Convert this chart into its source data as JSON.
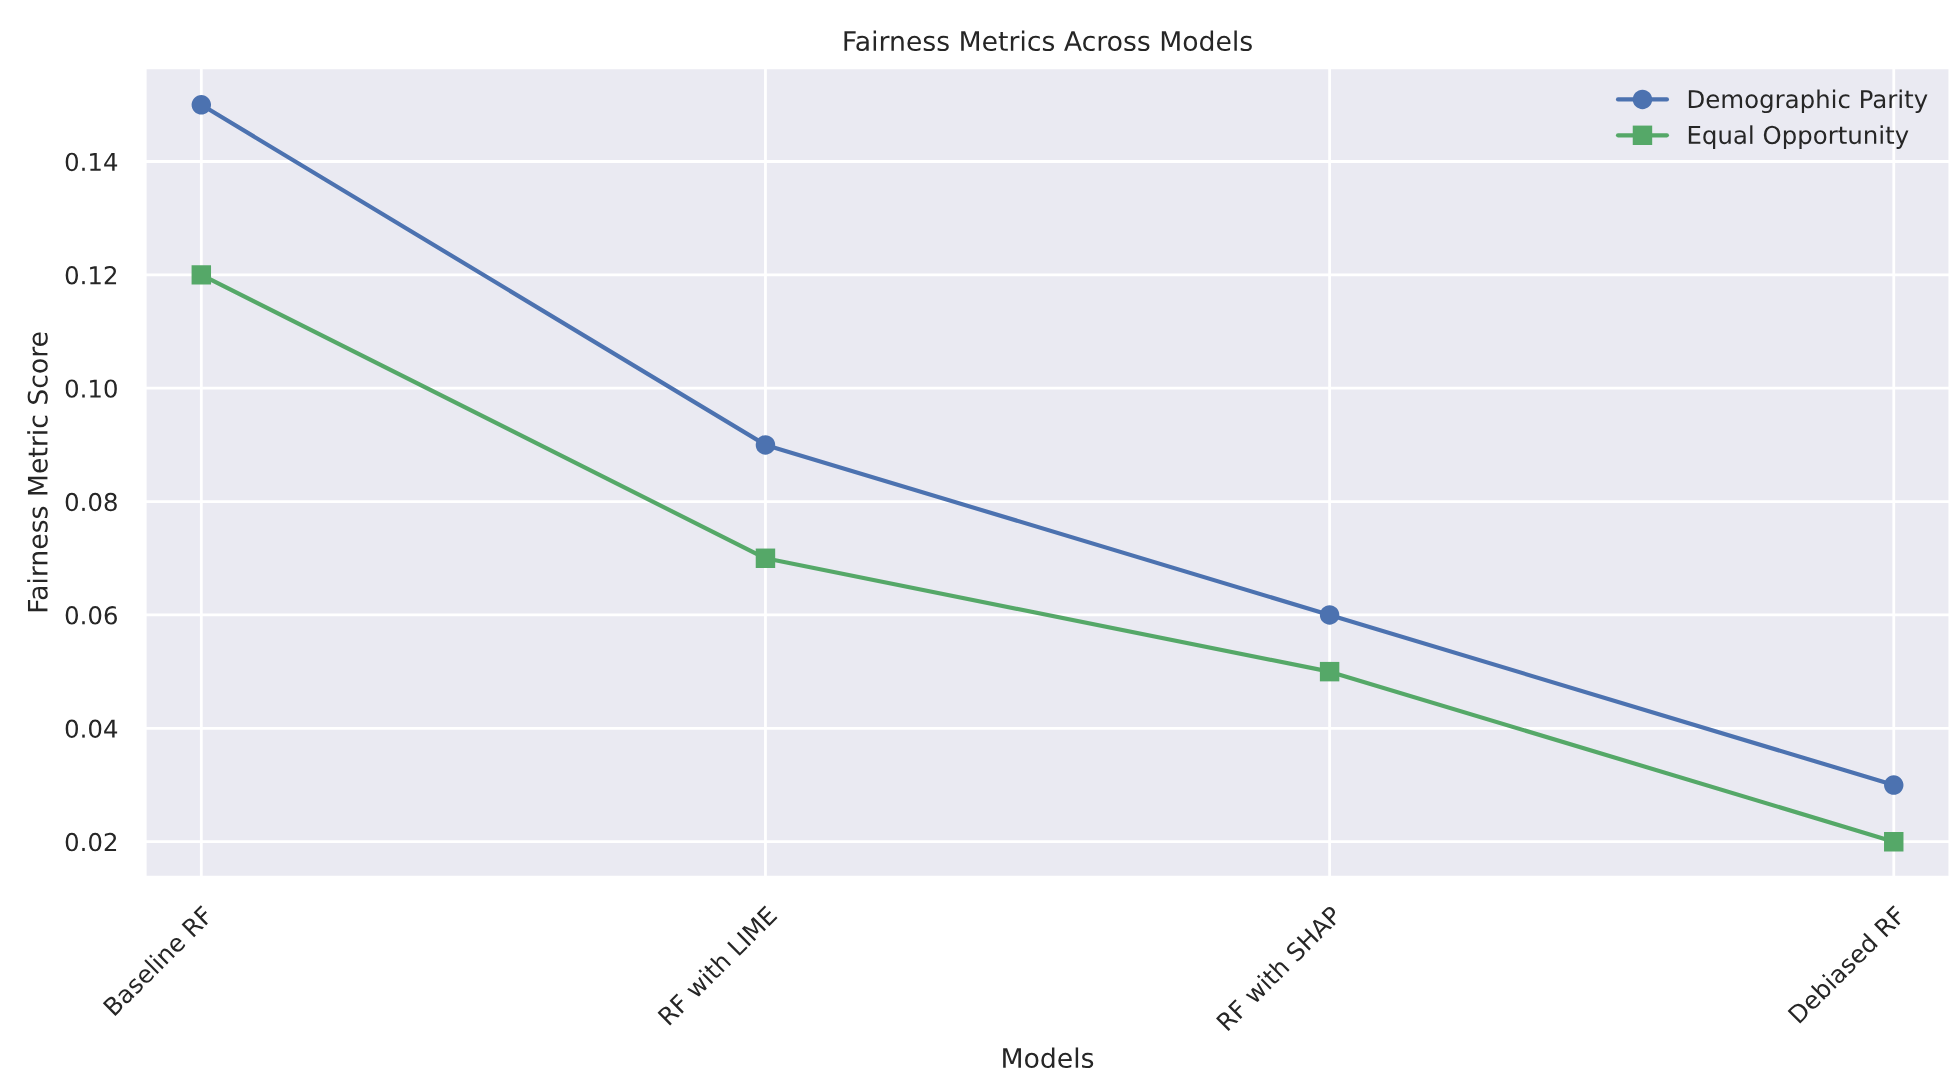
{
  "chart_data": {
    "type": "line",
    "title": "Fairness Metrics Across Models",
    "xlabel": "Models",
    "ylabel": "Fairness Metric Score",
    "categories": [
      "Baseline RF",
      "RF with LIME",
      "RF with SHAP",
      "Debiased RF"
    ],
    "series": [
      {
        "name": "Demographic Parity",
        "color": "#4c72b0",
        "values": [
          0.15,
          0.09,
          0.06,
          0.03
        ],
        "marker": "circle"
      },
      {
        "name": "Equal Opportunity",
        "color": "#55a868",
        "values": [
          0.12,
          0.07,
          0.05,
          0.02
        ],
        "marker": "square"
      }
    ],
    "ylim": [
      0.0137,
      0.1566
    ],
    "yticks": [
      {
        "value": 0.02,
        "label": "0.02"
      },
      {
        "value": 0.04,
        "label": "0.04"
      },
      {
        "value": 0.06,
        "label": "0.06"
      },
      {
        "value": 0.08,
        "label": "0.08"
      },
      {
        "value": 0.1,
        "label": "0.10"
      },
      {
        "value": 0.12,
        "label": "0.12"
      },
      {
        "value": 0.14,
        "label": "0.14"
      }
    ],
    "grid": true,
    "legend": "top right",
    "line_style": "solid"
  }
}
